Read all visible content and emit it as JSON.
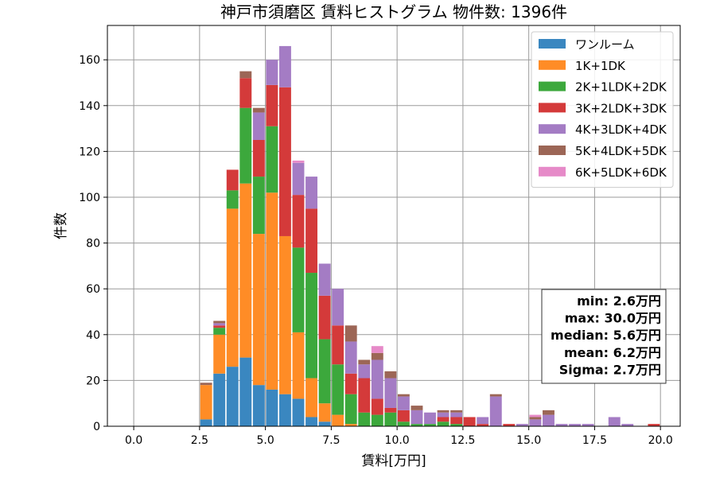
{
  "chart_data": {
    "type": "bar",
    "stacked": true,
    "title": "神戸市須磨区 賃料ヒストグラム  物件数: 1396件",
    "xlabel": "賃料[万円]",
    "ylabel": "件数",
    "xlim": [
      -1.0,
      20.75
    ],
    "ylim": [
      0,
      175
    ],
    "x_ticks": [
      0,
      2.5,
      5,
      7.5,
      10,
      12.5,
      15,
      17.5,
      20
    ],
    "x_tick_labels": [
      "0.0",
      "2.5",
      "5.0",
      "7.5",
      "10.0",
      "12.5",
      "15.0",
      "17.5",
      "20.0"
    ],
    "y_ticks": [
      0,
      20,
      40,
      60,
      80,
      100,
      120,
      140,
      160
    ],
    "y_tick_labels": [
      "0",
      "20",
      "40",
      "60",
      "80",
      "100",
      "120",
      "140",
      "160"
    ],
    "grid": true,
    "legend_position": "top-right",
    "bin_width": 0.5,
    "bins": [
      2.5,
      3.0,
      3.5,
      4.0,
      4.5,
      5.0,
      5.5,
      6.0,
      6.5,
      7.0,
      7.5,
      8.0,
      8.5,
      9.0,
      9.5,
      10.0,
      10.5,
      11.0,
      11.5,
      12.0,
      12.5,
      13.0,
      13.5,
      14.0,
      14.5,
      15.0,
      15.5,
      16.0,
      16.5,
      17.0,
      17.5,
      18.0,
      18.5,
      19.0,
      19.5
    ],
    "series": [
      {
        "name": "ワンルーム",
        "color": "#3a87c0",
        "values": [
          3,
          23,
          26,
          30,
          18,
          16,
          14,
          12,
          4,
          2,
          0,
          0,
          0,
          0,
          0,
          0,
          0,
          0,
          0,
          0,
          0,
          0,
          0,
          0,
          0,
          0,
          0,
          0,
          0,
          0,
          0,
          0,
          0,
          0,
          0
        ]
      },
      {
        "name": "1K+1DK",
        "color": "#ff8c26",
        "values": [
          15,
          17,
          69,
          76,
          66,
          86,
          69,
          29,
          17,
          8,
          5,
          1,
          0,
          0,
          0,
          0,
          0,
          0,
          0,
          0,
          0,
          0,
          0,
          0,
          0,
          0,
          0,
          0,
          0,
          0,
          0,
          0,
          0,
          0,
          0
        ]
      },
      {
        "name": "2K+1LDK+2DK",
        "color": "#3ca83c",
        "values": [
          0,
          3,
          8,
          33,
          25,
          29,
          0,
          37,
          46,
          28,
          22,
          13,
          6,
          5,
          6,
          2,
          1,
          1,
          2,
          1,
          0,
          0,
          0,
          0,
          0,
          0,
          0,
          0,
          0,
          0,
          0,
          0,
          0,
          0,
          0
        ]
      },
      {
        "name": "3K+2LDK+3DK",
        "color": "#d43a3a",
        "values": [
          0,
          1,
          9,
          13,
          16,
          18,
          65,
          23,
          28,
          19,
          17,
          9,
          15,
          7,
          2,
          5,
          0,
          0,
          2,
          3,
          4,
          1,
          0,
          1,
          0,
          0,
          0,
          0,
          0,
          0,
          0,
          0,
          0,
          0,
          1
        ]
      },
      {
        "name": "4K+3LDK+4DK",
        "color": "#a47cc4",
        "values": [
          0,
          1,
          0,
          0,
          12,
          11,
          18,
          14,
          14,
          14,
          16,
          14,
          6,
          17,
          13,
          6,
          6,
          5,
          2,
          2,
          0,
          3,
          13,
          0,
          1,
          3,
          5,
          1,
          1,
          1,
          0,
          4,
          1,
          0,
          0
        ]
      },
      {
        "name": "5K+4LDK+5DK",
        "color": "#9c6656",
        "values": [
          1,
          1,
          0,
          3,
          2,
          0,
          0,
          0,
          0,
          0,
          0,
          7,
          2,
          3,
          3,
          1,
          2,
          0,
          1,
          1,
          0,
          0,
          1,
          0,
          0,
          1,
          2,
          0,
          0,
          0,
          0,
          0,
          0,
          0,
          0
        ]
      },
      {
        "name": "6K+5LDK+6DK",
        "color": "#e68ac8",
        "values": [
          0,
          0,
          0,
          0,
          0,
          0,
          0,
          1,
          0,
          0,
          0,
          0,
          0,
          3,
          0,
          0,
          0,
          0,
          0,
          0,
          0,
          0,
          0,
          0,
          0,
          1,
          0,
          0,
          0,
          0,
          0,
          0,
          0,
          0,
          0
        ]
      }
    ],
    "stats": [
      "min: 2.6万円",
      "max: 30.0万円",
      "median: 5.6万円",
      "mean: 6.2万円",
      "Sigma: 2.7万円"
    ]
  }
}
